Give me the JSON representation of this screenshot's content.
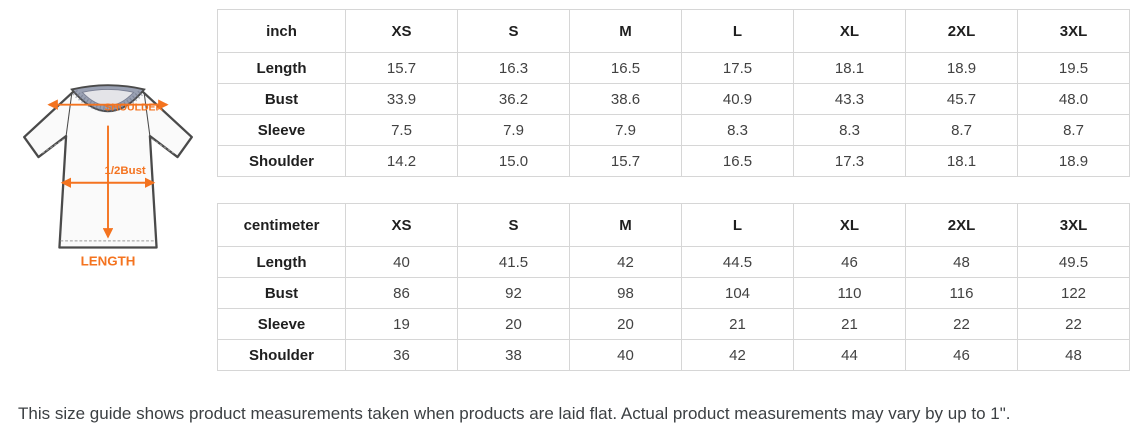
{
  "page": {
    "note": "This size guide shows product measurements taken when products are laid flat. Actual product measurements may vary by up to 1\"."
  },
  "figure": {
    "description": "t-shirt flat measurement diagram",
    "accent_color": "#f4731f",
    "labels": {
      "shoulder": "SHOULDER",
      "bust": "1/2Bust",
      "length": "LENGTH"
    }
  },
  "tables": [
    {
      "unit": "inch",
      "sizes": [
        "XS",
        "S",
        "M",
        "L",
        "XL",
        "2XL",
        "3XL"
      ],
      "rows": [
        {
          "label": "Length",
          "values": [
            "15.7",
            "16.3",
            "16.5",
            "17.5",
            "18.1",
            "18.9",
            "19.5"
          ]
        },
        {
          "label": "Bust",
          "values": [
            "33.9",
            "36.2",
            "38.6",
            "40.9",
            "43.3",
            "45.7",
            "48.0"
          ]
        },
        {
          "label": "Sleeve",
          "values": [
            "7.5",
            "7.9",
            "7.9",
            "8.3",
            "8.3",
            "8.7",
            "8.7"
          ]
        },
        {
          "label": "Shoulder",
          "values": [
            "14.2",
            "15.0",
            "15.7",
            "16.5",
            "17.3",
            "18.1",
            "18.9"
          ]
        }
      ]
    },
    {
      "unit": "centimeter",
      "sizes": [
        "XS",
        "S",
        "M",
        "L",
        "XL",
        "2XL",
        "3XL"
      ],
      "rows": [
        {
          "label": "Length",
          "values": [
            "40",
            "41.5",
            "42",
            "44.5",
            "46",
            "48",
            "49.5"
          ]
        },
        {
          "label": "Bust",
          "values": [
            "86",
            "92",
            "98",
            "104",
            "110",
            "116",
            "122"
          ]
        },
        {
          "label": "Sleeve",
          "values": [
            "19",
            "20",
            "20",
            "21",
            "21",
            "22",
            "22"
          ]
        },
        {
          "label": "Shoulder",
          "values": [
            "36",
            "38",
            "40",
            "42",
            "44",
            "46",
            "48"
          ]
        }
      ]
    }
  ]
}
